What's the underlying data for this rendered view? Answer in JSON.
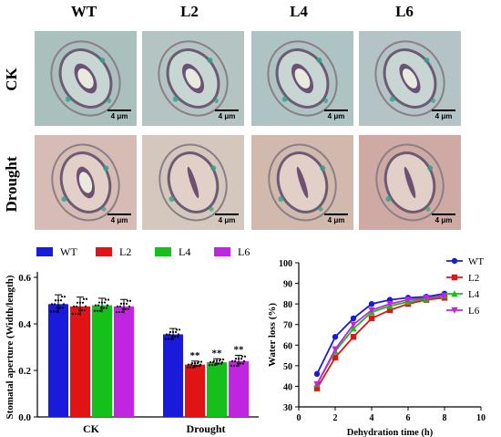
{
  "figure": {
    "column_labels": [
      "WT",
      "L2",
      "L4",
      "L6"
    ],
    "row_labels": [
      "CK",
      "Drought"
    ],
    "scale_bar_label": "4 μm"
  },
  "colors": {
    "WT": "#1a1adb",
    "L2": "#e01414",
    "L4": "#16c01a",
    "L6": "#c026e0"
  },
  "chart_data": [
    {
      "type": "bar",
      "categories": [
        "CK",
        "Drought"
      ],
      "series": [
        {
          "name": "WT",
          "values": [
            0.485,
            0.355
          ],
          "error": [
            0.04,
            0.025
          ]
        },
        {
          "name": "L2",
          "values": [
            0.475,
            0.225
          ],
          "error": [
            0.04,
            0.015
          ]
        },
        {
          "name": "L4",
          "values": [
            0.48,
            0.235
          ],
          "error": [
            0.03,
            0.015
          ]
        },
        {
          "name": "L6",
          "values": [
            0.475,
            0.24
          ],
          "error": [
            0.03,
            0.025
          ]
        }
      ],
      "significance": [
        [
          "",
          ""
        ],
        [
          "",
          "**"
        ],
        [
          "",
          "**"
        ],
        [
          "",
          "**"
        ]
      ],
      "ylabel": "Stomatal aperture (Width/length)",
      "xlabel": "",
      "ylim": [
        0,
        0.6
      ],
      "yticks": [
        "0.0",
        "0.2",
        "0.4",
        "0.6"
      ],
      "legend": "top",
      "grid": false
    },
    {
      "type": "line",
      "x": [
        1,
        2,
        3,
        4,
        5,
        6,
        7,
        8
      ],
      "series": [
        {
          "name": "WT",
          "values": [
            46,
            64,
            73,
            80,
            82,
            83,
            83.5,
            85
          ]
        },
        {
          "name": "L2",
          "values": [
            39,
            54,
            64,
            73,
            77,
            80,
            82,
            83
          ]
        },
        {
          "name": "L4",
          "values": [
            41,
            57,
            68,
            76,
            79,
            81,
            82.5,
            84
          ]
        },
        {
          "name": "L6",
          "values": [
            41,
            58,
            70,
            77,
            80,
            82,
            83,
            84
          ]
        }
      ],
      "markers": [
        "circle",
        "square",
        "triangle-up",
        "triangle-down"
      ],
      "xlabel": "Dehydration time (h)",
      "ylabel": "Water loss (%)",
      "xlim": [
        0,
        10
      ],
      "ylim": [
        30,
        100
      ],
      "xticks": [
        "0",
        "2",
        "4",
        "6",
        "8",
        "10"
      ],
      "yticks": [
        "30",
        "40",
        "50",
        "60",
        "70",
        "80",
        "90",
        "100"
      ],
      "legend": "top-right",
      "grid": false
    }
  ]
}
